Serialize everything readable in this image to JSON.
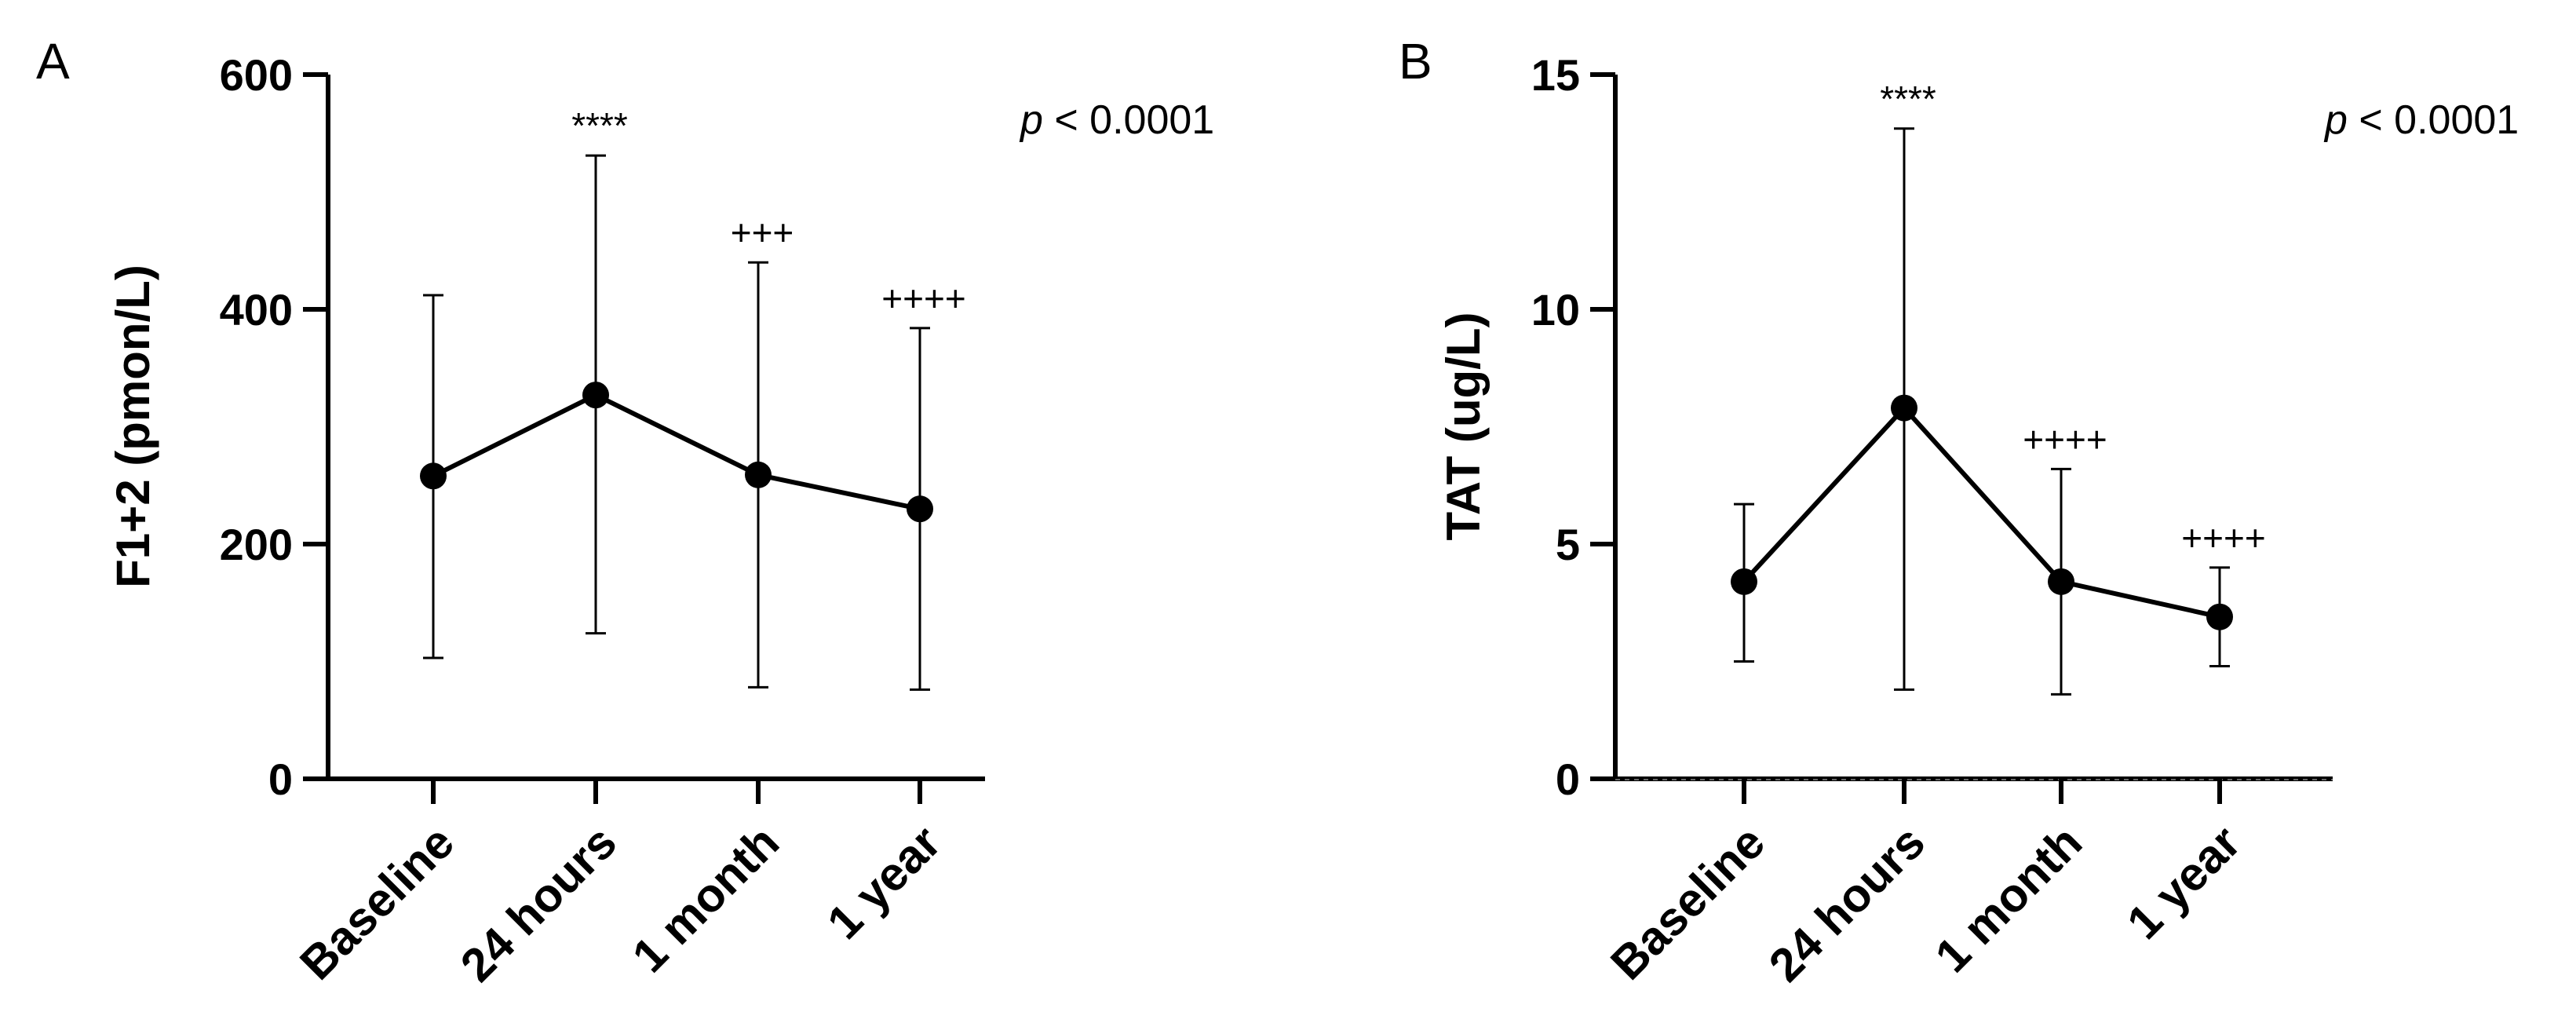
{
  "chart_data": [
    {
      "type": "line",
      "panel": "A",
      "ylabel": "F1+2 (pmon/L)",
      "ylim": [
        0,
        600
      ],
      "yticks": [
        "0",
        "200",
        "400",
        "600"
      ],
      "categories": [
        "Baseline",
        "24 hours",
        "1 month",
        "1 year"
      ],
      "series": [
        {
          "values": [
            258,
            327,
            259,
            230
          ],
          "error_upper": [
            412,
            531,
            440,
            384
          ],
          "error_lower": [
            103,
            124,
            78,
            76
          ],
          "significance": [
            "",
            "****",
            "+++",
            "++++"
          ]
        }
      ],
      "annotation": {
        "p_prefix": "p",
        "p_rest": " < 0.0001"
      }
    },
    {
      "type": "line",
      "panel": "B",
      "ylabel": "TAT (ug/L)",
      "ylim": [
        0,
        15
      ],
      "yticks": [
        "0",
        "5",
        "10",
        "15"
      ],
      "categories": [
        "Baseline",
        "24 hours",
        "1 month",
        "1 year"
      ],
      "series": [
        {
          "values": [
            4.2,
            7.9,
            4.2,
            3.45
          ],
          "error_upper": [
            5.85,
            13.85,
            6.6,
            4.5
          ],
          "error_lower": [
            2.5,
            1.9,
            1.8,
            2.4
          ],
          "significance": [
            "",
            "****",
            "++++",
            "++++"
          ]
        }
      ],
      "annotation": {
        "p_prefix": "p",
        "p_rest": " < 0.0001"
      }
    }
  ]
}
